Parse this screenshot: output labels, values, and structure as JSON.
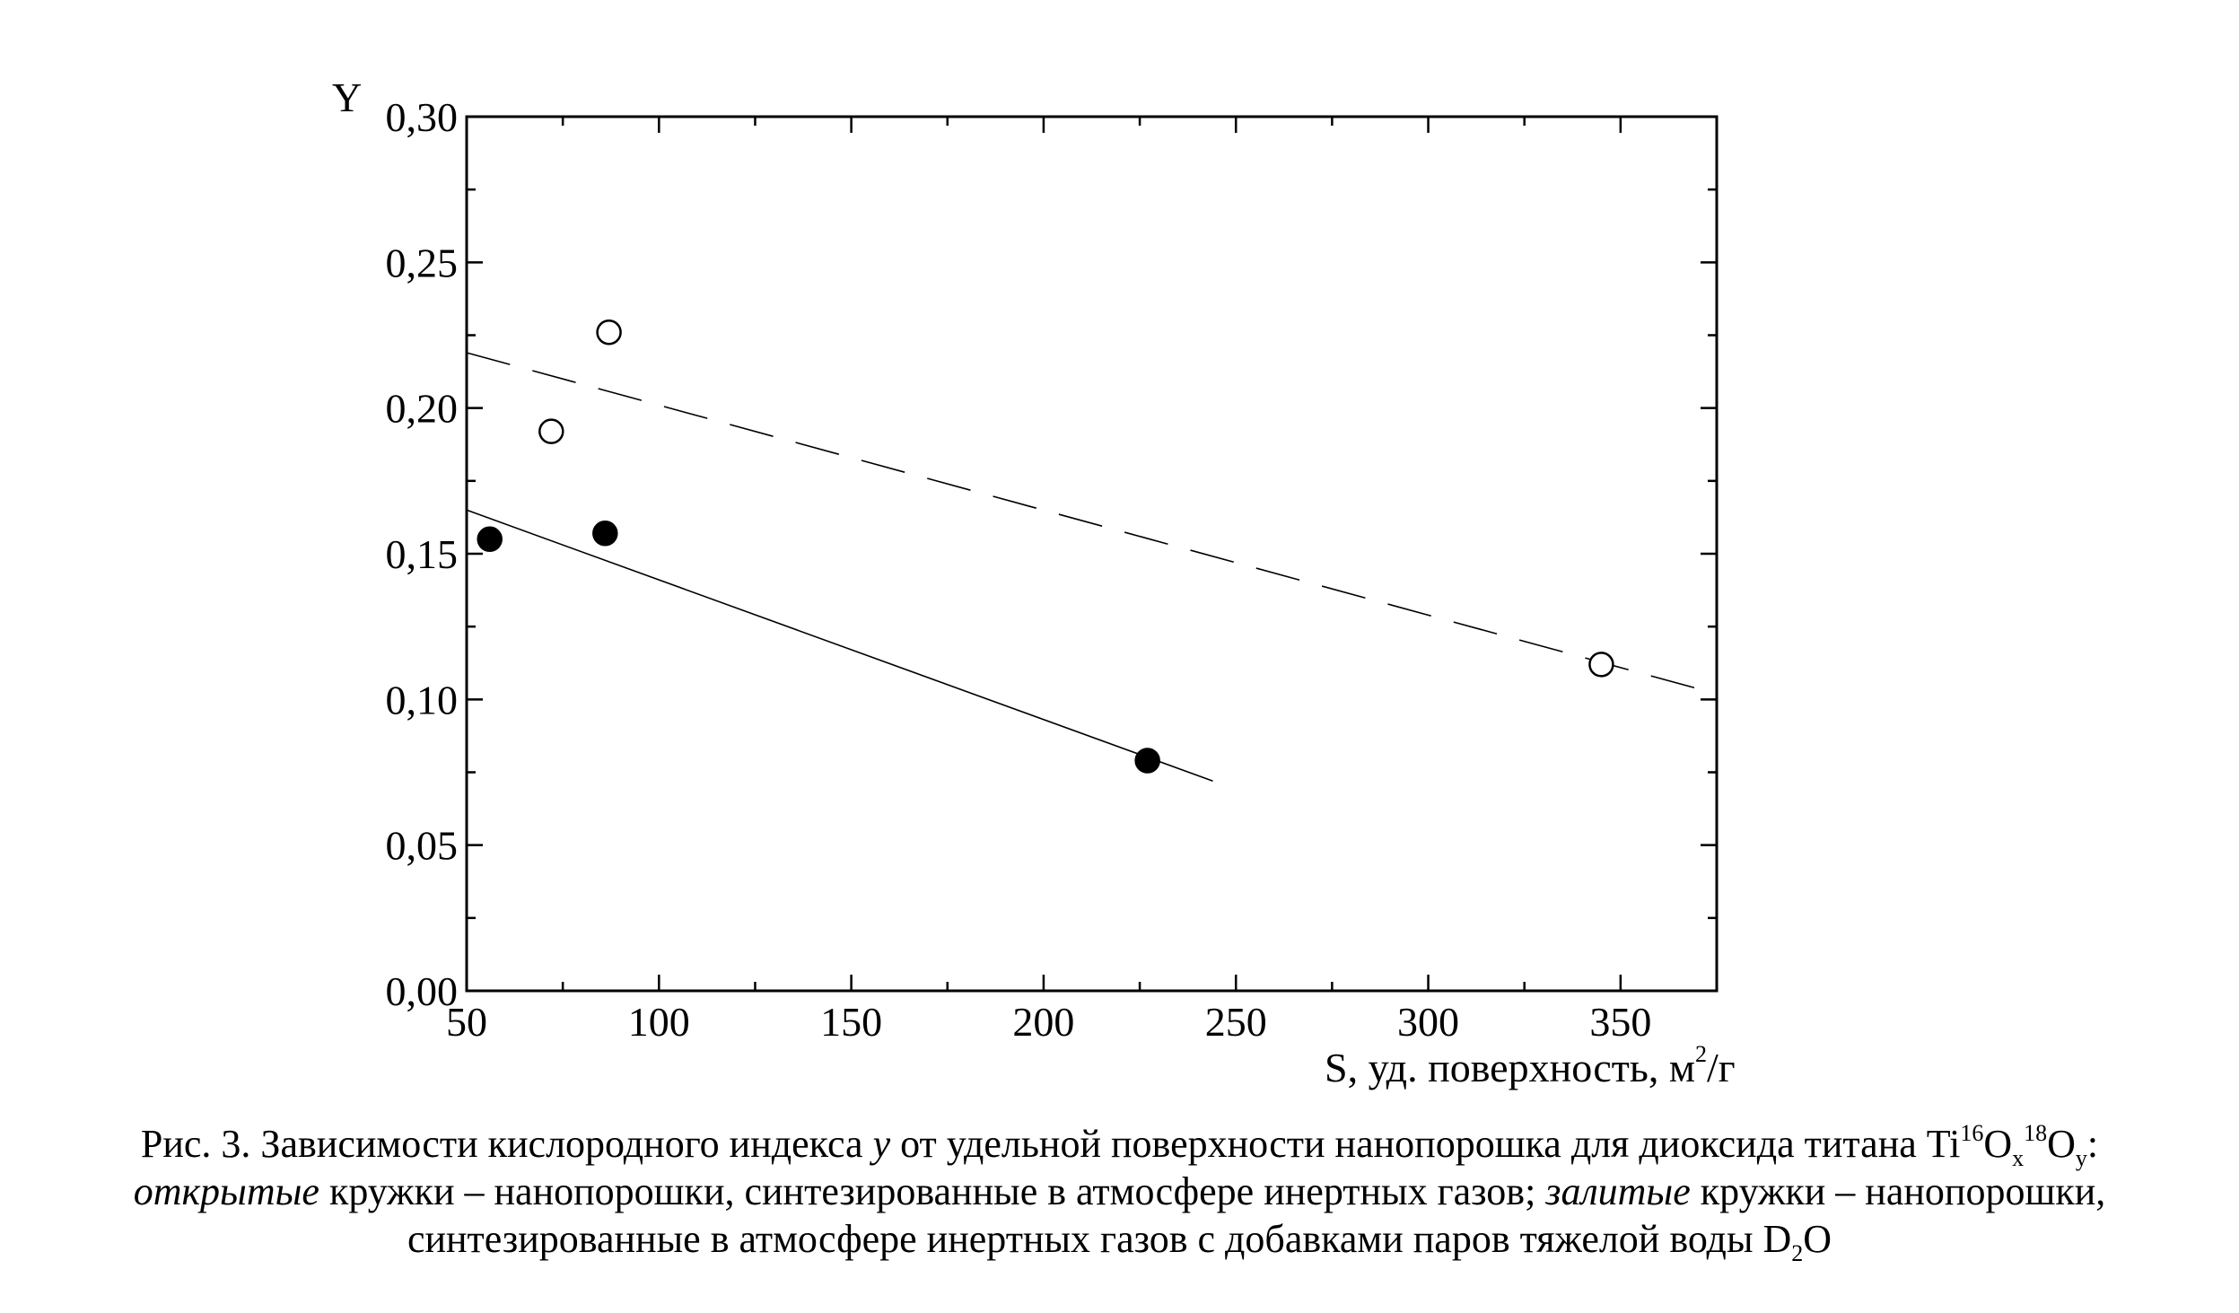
{
  "chart_data": {
    "type": "scatter",
    "x_label_main": "S, уд. поверхность, м",
    "x_label_sup": "2",
    "x_label_end": "/г",
    "y_label": "Y",
    "xlim": [
      50,
      375
    ],
    "ylim": [
      0,
      0.3
    ],
    "x_ticks": [
      50,
      100,
      150,
      200,
      250,
      300,
      350
    ],
    "x_tick_labels": [
      "50",
      "100",
      "150",
      "200",
      "250",
      "300",
      "350"
    ],
    "y_ticks": [
      0,
      0.05,
      0.1,
      0.15,
      0.2,
      0.25,
      0.3
    ],
    "y_tick_labels": [
      "0,00",
      "0,05",
      "0,10",
      "0,15",
      "0,20",
      "0,25",
      "0,30"
    ],
    "grid": false,
    "series": [
      {
        "marker": "open-circle",
        "points": [
          [
            72,
            0.192
          ],
          [
            87,
            0.226
          ],
          [
            345,
            0.112
          ]
        ],
        "fit_line": {
          "style": "dashed",
          "from": [
            50,
            0.219
          ],
          "to": [
            372,
            0.103
          ]
        }
      },
      {
        "marker": "filled-circle",
        "points": [
          [
            56,
            0.155
          ],
          [
            86,
            0.157
          ],
          [
            227,
            0.079
          ]
        ],
        "fit_line": {
          "style": "solid",
          "from": [
            50,
            0.165
          ],
          "to": [
            244,
            0.072
          ]
        }
      }
    ]
  },
  "caption": {
    "line1_a": "Рис. 3. Зависимости кислородного индекса ",
    "line1_var": "y",
    "line1_b": " от удельной поверхности нанопорошка для диоксида титана Ti",
    "iso16": "16",
    "o1": "O",
    "sub_x": "x",
    "iso18": "18",
    "o2": "O",
    "sub_y": "y",
    "line1_end": ":",
    "line2_open": "открытые",
    "line2_b": " кружки – нанопорошки, синтезированные в атмосфере инертных газов; ",
    "line2_filled": "залитые",
    "line2_c": " кружки – нанопорошки,",
    "line3_a": "синтезированные в атмосфере инертных газов с добавками паров тяжелой воды D",
    "sub_2": "2",
    "line3_end": "O"
  }
}
